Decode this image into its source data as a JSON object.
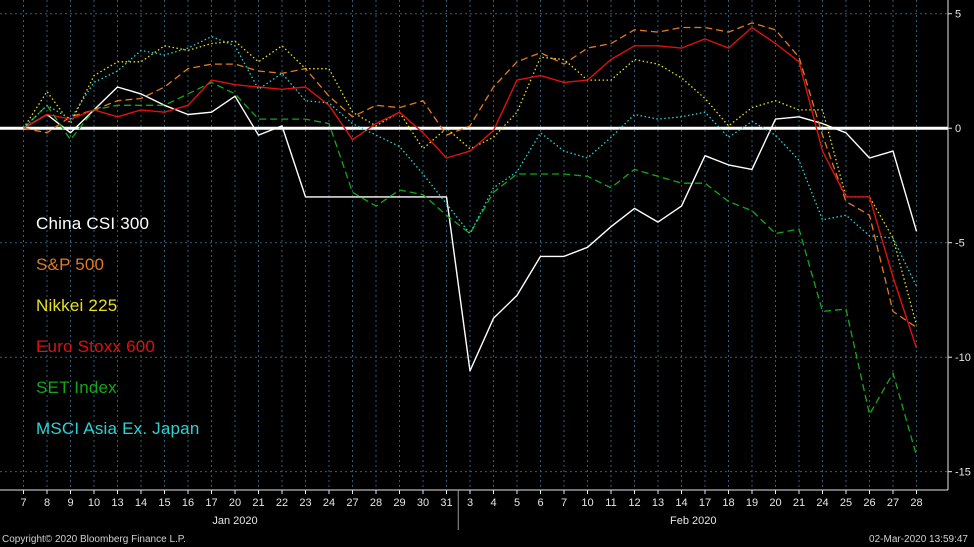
{
  "chart_data": {
    "type": "line",
    "x": [
      "7",
      "8",
      "9",
      "10",
      "13",
      "14",
      "15",
      "16",
      "17",
      "20",
      "21",
      "22",
      "23",
      "24",
      "27",
      "28",
      "29",
      "30",
      "31",
      "3",
      "4",
      "5",
      "6",
      "7",
      "10",
      "11",
      "12",
      "13",
      "14",
      "17",
      "18",
      "19",
      "20",
      "21",
      "24",
      "25",
      "26",
      "27",
      "28"
    ],
    "month_labels": [
      {
        "label": "Jan 2020",
        "at": "20"
      },
      {
        "label": "Feb 2020",
        "at": "20b"
      }
    ],
    "ylim": [
      -15.8,
      5.6
    ],
    "yticks": [
      5,
      0,
      -5,
      -10,
      -15
    ],
    "ytick_labels": [
      "5",
      "0",
      "-5",
      "-10",
      "-15"
    ],
    "zero_line": true,
    "legend_position": "left",
    "series": [
      {
        "name": "China CSI 300",
        "color": "#ffffff",
        "dash": "solid",
        "values": [
          0,
          0.6,
          -0.2,
          0.8,
          1.8,
          1.5,
          1.0,
          0.6,
          0.7,
          1.4,
          -0.3,
          0.1,
          -3.0,
          -3.0,
          -3.0,
          -3.0,
          -3.0,
          -3.0,
          -3.0,
          -10.6,
          -8.3,
          -7.3,
          -5.6,
          -5.6,
          -5.2,
          -4.3,
          -3.5,
          -4.1,
          -3.4,
          -1.2,
          -1.6,
          -1.8,
          0.4,
          0.5,
          0.2,
          -0.2,
          -1.3,
          -1.0,
          -4.5
        ]
      },
      {
        "name": "S&P 500",
        "color": "#e07b1f",
        "dash": "longdash",
        "values": [
          0,
          -0.2,
          0.5,
          0.8,
          1.2,
          1.3,
          1.8,
          2.6,
          2.8,
          2.8,
          2.5,
          2.4,
          2.6,
          1.4,
          0.5,
          1.0,
          0.9,
          1.2,
          -0.3,
          0.1,
          1.8,
          2.9,
          3.3,
          2.8,
          3.5,
          3.7,
          4.3,
          4.2,
          4.4,
          4.4,
          4.2,
          4.6,
          4.3,
          3.1,
          -0.3,
          -3.2,
          -3.8,
          -8.0,
          -8.7
        ]
      },
      {
        "name": "Nikkei 225",
        "color": "#e6e01a",
        "dash": "dotted",
        "values": [
          0,
          1.6,
          0.2,
          2.3,
          2.9,
          2.9,
          3.6,
          3.4,
          3.7,
          3.8,
          2.9,
          3.6,
          2.6,
          2.6,
          0.7,
          0.1,
          0.7,
          -0.9,
          0,
          -0.9,
          -0.4,
          0.7,
          3.1,
          3.0,
          2.1,
          2.1,
          3.0,
          2.8,
          2.2,
          1.3,
          0.1,
          0.9,
          1.2,
          0.8,
          0.8,
          -3.0,
          -3.0,
          -4.8,
          -8.6
        ]
      },
      {
        "name": "Euro Stoxx 600",
        "color": "#e01010",
        "dash": "solid",
        "values": [
          0,
          0.6,
          0.4,
          0.8,
          0.5,
          0.8,
          0.7,
          1.0,
          2.1,
          1.9,
          1.8,
          1.7,
          1.8,
          1.0,
          -0.5,
          0.2,
          0.7,
          -0.2,
          -1.3,
          -1.0,
          -0.1,
          2.1,
          2.3,
          2.0,
          2.1,
          3.0,
          3.6,
          3.6,
          3.5,
          3.9,
          3.5,
          4.4,
          3.7,
          2.9,
          -1.0,
          -3.0,
          -3.0,
          -6.5,
          -9.6
        ]
      },
      {
        "name": "SET Index",
        "color": "#13a818",
        "dash": "longdash",
        "values": [
          0,
          1.0,
          -0.5,
          0.8,
          1.0,
          1.0,
          1.0,
          1.5,
          2.0,
          1.5,
          0.4,
          0.4,
          0.4,
          0.2,
          -2.8,
          -3.4,
          -2.7,
          -2.9,
          -3.8,
          -4.6,
          -2.8,
          -2.0,
          -2.0,
          -2.0,
          -2.1,
          -2.6,
          -1.8,
          -2.1,
          -2.4,
          -2.4,
          -3.2,
          -3.6,
          -4.6,
          -4.4,
          -8.0,
          -7.9,
          -12.5,
          -10.7,
          -14.3
        ]
      },
      {
        "name": "MSCI Asia Ex. Japan",
        "color": "#2ad4d4",
        "dash": "dotted",
        "values": [
          0,
          1.0,
          0.4,
          2.0,
          2.5,
          3.4,
          3.2,
          3.5,
          4.0,
          3.6,
          1.7,
          2.4,
          1.2,
          1.1,
          0.2,
          -0.3,
          -0.8,
          -2.0,
          -3.3,
          -4.6,
          -2.6,
          -1.9,
          -0.2,
          -1.0,
          -1.3,
          -0.4,
          0.6,
          0.4,
          0.5,
          0.7,
          -0.4,
          0.3,
          -0.3,
          -1.4,
          -4.0,
          -3.8,
          -4.7,
          -4.8,
          -6.9
        ]
      }
    ]
  },
  "legend": {
    "items": [
      {
        "label": "China CSI 300",
        "color": "#ffffff"
      },
      {
        "label": "S&P 500",
        "color": "#e07b1f"
      },
      {
        "label": "Nikkei 225",
        "color": "#e6e01a"
      },
      {
        "label": "Euro Stoxx 600",
        "color": "#e01010"
      },
      {
        "label": "SET Index",
        "color": "#13a818"
      },
      {
        "label": "MSCI Asia Ex. Japan",
        "color": "#2ad4d4"
      }
    ]
  },
  "footer": {
    "copyright": "Copyright© 2020 Bloomberg Finance L.P.",
    "timestamp": "02-Mar-2020 13:59:47"
  },
  "colors": {
    "background": "#000000",
    "grid": "#2f5f7a",
    "axis_text": "#e6e6e6",
    "zero_line": "#ffffff"
  }
}
